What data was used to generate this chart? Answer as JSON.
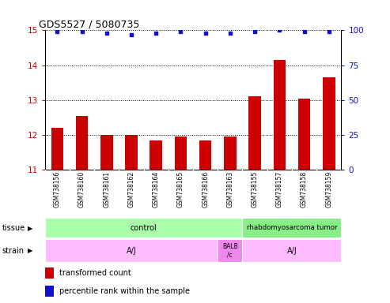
{
  "title": "GDS5527 / 5080735",
  "samples": [
    "GSM738156",
    "GSM738160",
    "GSM738161",
    "GSM738162",
    "GSM738164",
    "GSM738165",
    "GSM738166",
    "GSM738163",
    "GSM738155",
    "GSM738157",
    "GSM738158",
    "GSM738159"
  ],
  "bar_values": [
    12.2,
    12.55,
    12.0,
    12.0,
    11.85,
    11.95,
    11.83,
    11.95,
    13.1,
    14.15,
    13.05,
    13.65
  ],
  "dot_values": [
    99,
    99,
    98,
    97,
    98,
    99,
    98,
    98,
    99,
    100,
    99,
    99
  ],
  "ylim_left": [
    11,
    15
  ],
  "ylim_right": [
    0,
    100
  ],
  "yticks_left": [
    11,
    12,
    13,
    14,
    15
  ],
  "yticks_right": [
    0,
    25,
    50,
    75,
    100
  ],
  "bar_color": "#cc0000",
  "dot_color": "#1111cc",
  "tissue_control_label": "control",
  "tissue_tumor_label": "rhabdomyosarcoma tumor",
  "tissue_color_control": "#aaffaa",
  "tissue_color_tumor": "#88ee88",
  "strain_label_aj1": "A/J",
  "strain_label_balb": "BALB\n/c",
  "strain_label_aj2": "A/J",
  "strain_color_aj": "#ffbbff",
  "strain_color_balb": "#ee88ee",
  "legend_red_label": "transformed count",
  "legend_blue_label": "percentile rank within the sample",
  "background_color": "#ffffff",
  "sample_box_color": "#cccccc",
  "n_samples": 12,
  "n_control": 8,
  "n_balb": 1,
  "n_tumor": 4
}
